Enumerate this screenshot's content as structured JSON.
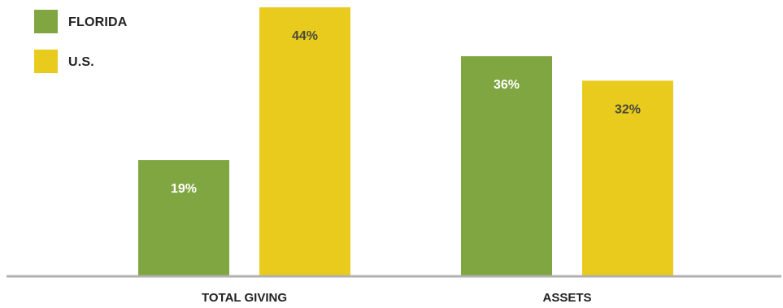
{
  "chart_data": {
    "type": "bar",
    "title": "",
    "xlabel": "",
    "ylabel": "",
    "categories": [
      "TOTAL GIVING",
      "ASSETS"
    ],
    "series": [
      {
        "name": "FLORIDA",
        "values": [
          19,
          36
        ],
        "labels": [
          "19%",
          "36%"
        ],
        "color": "#7fa640",
        "label_color": "#ffffff"
      },
      {
        "name": "U.S.",
        "values": [
          44,
          32
        ],
        "labels": [
          "44%",
          "32%"
        ],
        "color": "#e8cb1d",
        "label_color": "#4a4a3a"
      }
    ],
    "ylim": [
      0,
      44
    ],
    "grid": false,
    "legend": "top-left",
    "baseline_color": "#b0b0b0"
  }
}
